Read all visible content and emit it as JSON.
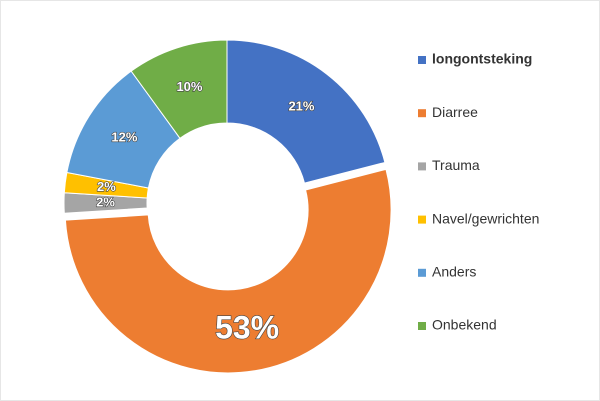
{
  "chart_data": {
    "type": "donut",
    "categories": [
      "longontsteking",
      "Diarree",
      "Trauma",
      "Navel/gewrichten",
      "Anders",
      "Onbekend"
    ],
    "values": [
      21,
      53,
      2,
      2,
      12,
      10
    ],
    "value_labels": [
      "21%",
      "53%",
      "2%",
      "2%",
      "12%",
      "10%"
    ],
    "colors": [
      "#4472c4",
      "#ed7d31",
      "#a5a5a5",
      "#ffc000",
      "#5b9bd5",
      "#70ad47"
    ],
    "legend": "right"
  }
}
